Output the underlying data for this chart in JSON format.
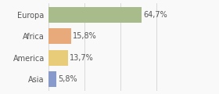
{
  "categories": [
    "Europa",
    "Africa",
    "America",
    "Asia"
  ],
  "values": [
    64.7,
    15.8,
    13.7,
    5.8
  ],
  "labels": [
    "64,7%",
    "15,8%",
    "13,7%",
    "5,8%"
  ],
  "bar_colors": [
    "#a8bb8a",
    "#e8aa7a",
    "#e8cc7a",
    "#8899cc"
  ],
  "background_color": "#f9f9f9",
  "xlim": [
    0,
    100
  ],
  "label_fontsize": 7.0,
  "tick_fontsize": 7.0,
  "bar_height": 0.72,
  "grid_xticks": [
    0,
    25,
    50,
    75,
    100
  ],
  "grid_color": "#cccccc",
  "text_color": "#555555"
}
